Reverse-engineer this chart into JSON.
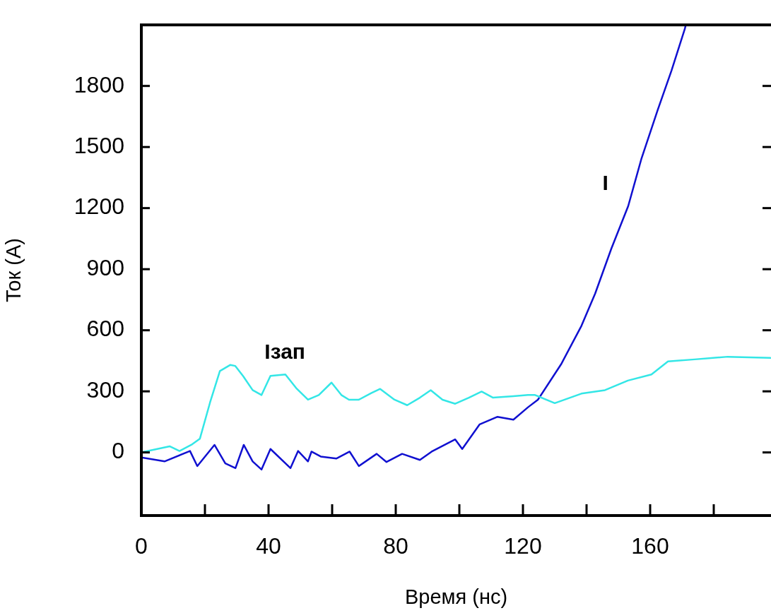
{
  "chart_data": {
    "type": "line",
    "xlabel": "Время (нс)",
    "ylabel": "Ток (А)",
    "xlim": [
      0,
      198
    ],
    "ylim": [
      -310,
      2100
    ],
    "xticks": [
      0,
      {
        "value": 20,
        "label": null
      },
      40,
      {
        "value": 60,
        "label": null
      },
      80,
      {
        "value": 100,
        "label": null
      },
      120,
      {
        "value": 140,
        "label": null
      },
      160,
      {
        "value": 180,
        "label": null
      }
    ],
    "yticks": [
      0,
      300,
      600,
      900,
      1200,
      1500,
      1800
    ],
    "annotations": [
      "Iзап",
      "I"
    ],
    "series": [
      {
        "color": "#33e6e6",
        "x": [
          0,
          8.9,
          12,
          16,
          18.4,
          21.6,
          24.7,
          28,
          29.5,
          32,
          35,
          37.8,
          40.6,
          45.3,
          48.7,
          52.4,
          55.8,
          59.8,
          62.9,
          65.3,
          68.4,
          72.4,
          75.1,
          79.6,
          83.6,
          87.6,
          91,
          94.7,
          98.7,
          103,
          107,
          110.6,
          117,
          121.6,
          123.8,
          130,
          138.4,
          145.8,
          153,
          160.4,
          165.6,
          174,
          184.4,
          197.8
        ],
        "values": [
          0,
          30,
          7,
          40,
          67,
          245,
          400,
          430,
          425,
          375,
          306,
          282,
          376,
          383,
          316,
          259,
          282,
          343,
          282,
          259,
          259,
          292,
          312,
          259,
          232,
          269,
          306,
          259,
          239,
          269,
          299,
          269,
          276,
          282,
          282,
          242,
          289,
          306,
          353,
          383,
          447,
          457,
          470,
          464
        ]
      },
      {
        "color": "#1010d0",
        "x": [
          0,
          7.3,
          15.3,
          17.6,
          23,
          26.4,
          29.6,
          32.2,
          35,
          37.8,
          40.6,
          46.9,
          49.3,
          52.4,
          53.5,
          56.4,
          61.3,
          65.5,
          68.4,
          74,
          77.1,
          82,
          87.6,
          91.3,
          98.7,
          100.9,
          106.4,
          112,
          117,
          121.6,
          124.7,
          132,
          138.4,
          142.7,
          147.8,
          153.1,
          157.3,
          162.4,
          166.7,
          170.9,
          171.2
        ],
        "values": [
          -25,
          -44,
          7,
          -67,
          37,
          -54,
          -77,
          37,
          -44,
          -84,
          17,
          -77,
          7,
          -44,
          4,
          -20,
          -30,
          4,
          -67,
          -7,
          -47,
          -7,
          -37,
          4,
          64,
          17,
          138,
          175,
          161,
          222,
          259,
          433,
          622,
          780,
          1001,
          1210,
          1445,
          1683,
          1875,
          2080,
          2100
        ]
      }
    ]
  }
}
